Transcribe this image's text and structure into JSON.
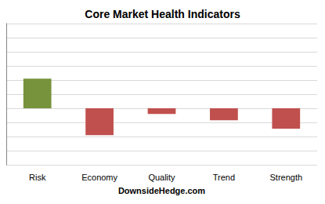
{
  "chart_data": {
    "type": "bar",
    "title": "Core Market Health Indicators",
    "x_label": "DownsideHedge.com",
    "categories": [
      "Risk",
      "Economy",
      "Quality",
      "Trend",
      "Strength"
    ],
    "values": [
      2.1,
      -1.9,
      -0.4,
      -0.85,
      -1.45
    ],
    "colors": [
      "#77933c",
      "#c0504d",
      "#c0504d",
      "#c0504d",
      "#c0504d"
    ],
    "ylim": [
      -4,
      6
    ],
    "yticks": [
      -4,
      -3,
      -2,
      -1,
      0,
      1,
      2,
      3,
      4,
      5,
      6
    ],
    "grid": true,
    "tick_labels": "x"
  }
}
